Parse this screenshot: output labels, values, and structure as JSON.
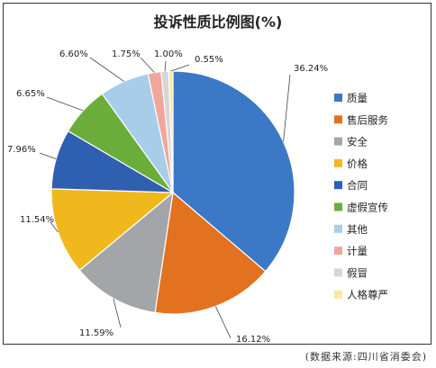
{
  "chart_data": {
    "type": "pie",
    "title": "投诉性质比例图(%)",
    "categories": [
      "质量",
      "售后服务",
      "安全",
      "价格",
      "合同",
      "虚假宣传",
      "其他",
      "计量",
      "假冒",
      "人格尊严"
    ],
    "values": [
      36.24,
      16.12,
      11.59,
      11.54,
      7.96,
      6.65,
      6.6,
      1.75,
      1.0,
      0.55
    ],
    "labels": [
      "36.24%",
      "16.12%",
      "11.59%",
      "11.54%",
      "7.96%",
      "6.65%",
      "6.60%",
      "1.75%",
      "1.00%",
      "0.55%"
    ],
    "colors": [
      "#3b78c6",
      "#e2721f",
      "#a3a6a8",
      "#f0b81d",
      "#2e5fb0",
      "#6bad3a",
      "#a8cde9",
      "#f0a79a",
      "#d6d6d6",
      "#fbe7a0"
    ],
    "legend_position": "right"
  },
  "source": "(数据来源:四川省消委会)"
}
